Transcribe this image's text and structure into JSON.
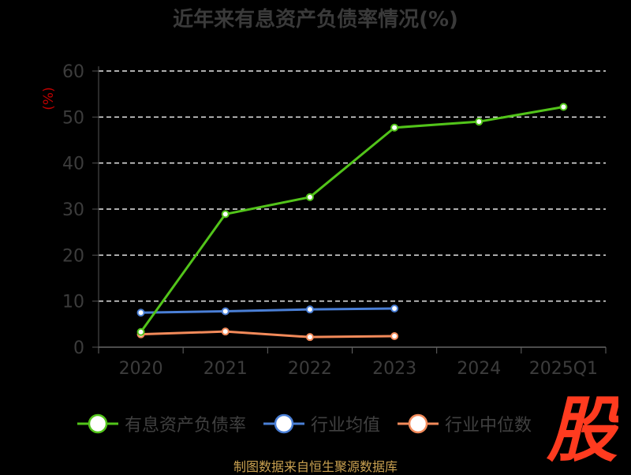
{
  "chart_data": {
    "type": "line",
    "title": "近年来有息资产负债率情况(%)",
    "ylabel": "(%)",
    "ylim": [
      0,
      60
    ],
    "yticks": [
      0,
      10,
      20,
      30,
      40,
      50,
      60
    ],
    "categories": [
      "2020",
      "2021",
      "2022",
      "2023",
      "2024",
      "2025Q1"
    ],
    "grid": true,
    "legend_position": "bottom",
    "series": [
      {
        "name": "有息资产负债率",
        "color": "#52c41a",
        "values": [
          3.3,
          28.9,
          32.6,
          47.7,
          49.0,
          52.2
        ]
      },
      {
        "name": "行业均值",
        "color": "#4a7fd6",
        "values": [
          7.5,
          7.8,
          8.2,
          8.4,
          null,
          null
        ]
      },
      {
        "name": "行业中位数",
        "color": "#f28a5a",
        "values": [
          2.8,
          3.4,
          2.2,
          2.4,
          null,
          null
        ]
      }
    ]
  },
  "source": "制图数据来自恒生聚源数据库",
  "watermark": "股"
}
